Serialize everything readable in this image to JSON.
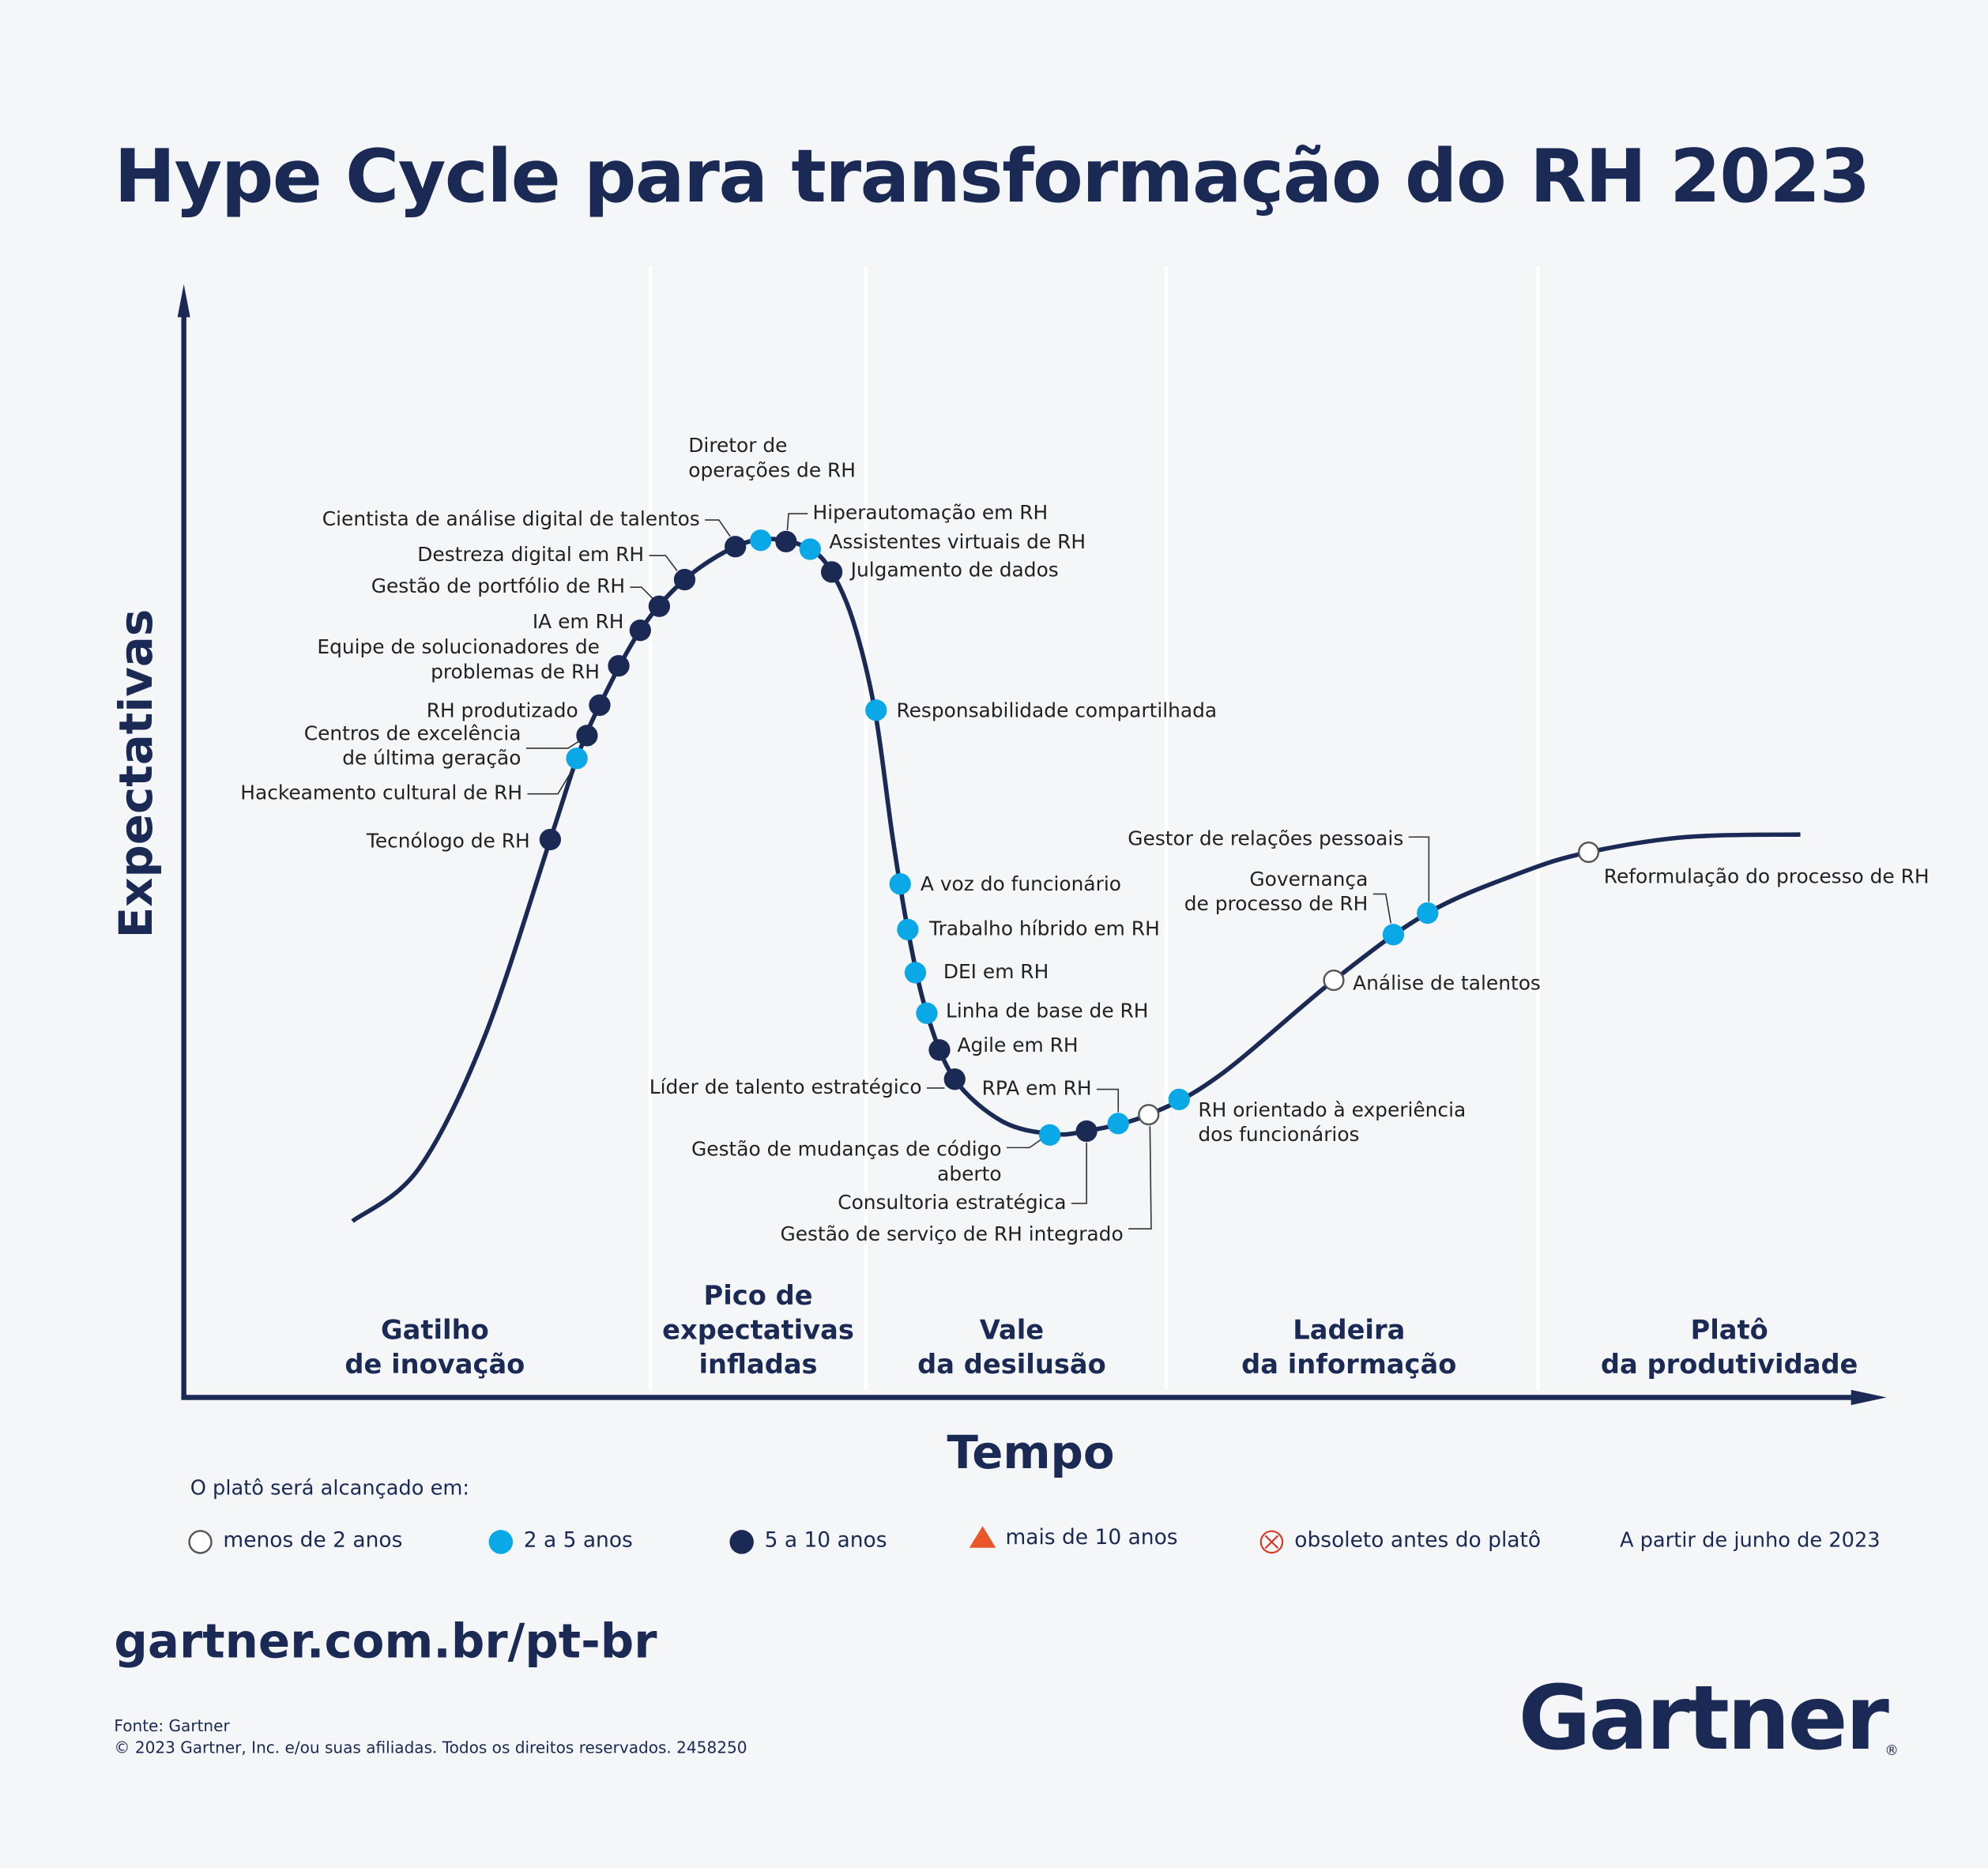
{
  "title": "Hype Cycle para transformação do RH 2023",
  "axes": {
    "y": "Expectativas",
    "x": "Tempo"
  },
  "phases": [
    {
      "lines": [
        "Gatilho",
        "de inovação"
      ]
    },
    {
      "lines": [
        "Pico de",
        "expectativas",
        "infladas"
      ]
    },
    {
      "lines": [
        "Vale",
        "da desilusão"
      ]
    },
    {
      "lines": [
        "Ladeira",
        "da informação"
      ]
    },
    {
      "lines": [
        "Platô",
        "da produtividade"
      ]
    }
  ],
  "technologies": [
    {
      "lines": [
        "Tecnólogo de RH"
      ],
      "horizon": "5 a 10 anos"
    },
    {
      "lines": [
        "Hackeamento cultural de RH"
      ],
      "horizon": "2 a 5 anos"
    },
    {
      "lines": [
        "Centros de excelência",
        "de última geração"
      ],
      "horizon": "5 a 10 anos"
    },
    {
      "lines": [
        "RH produtizado"
      ],
      "horizon": "5 a 10 anos"
    },
    {
      "lines": [
        "Equipe de solucionadores de",
        "problemas de RH"
      ],
      "horizon": "5 a 10 anos"
    },
    {
      "lines": [
        "IA em RH"
      ],
      "horizon": "5 a 10 anos"
    },
    {
      "lines": [
        "Gestão de portfólio de RH"
      ],
      "horizon": "5 a 10 anos"
    },
    {
      "lines": [
        "Destreza digital em RH"
      ],
      "horizon": "5 a 10 anos"
    },
    {
      "lines": [
        "Cientista de análise digital de talentos"
      ],
      "horizon": "5 a 10 anos"
    },
    {
      "lines": [
        "Diretor de",
        "operações de RH"
      ],
      "horizon": "2 a 5 anos"
    },
    {
      "lines": [
        "Hiperautomação em RH"
      ],
      "horizon": "5 a 10 anos"
    },
    {
      "lines": [
        "Assistentes virtuais de RH"
      ],
      "horizon": "2 a 5 anos"
    },
    {
      "lines": [
        "Julgamento de dados"
      ],
      "horizon": "5 a 10 anos"
    },
    {
      "lines": [
        "Responsabilidade compartilhada"
      ],
      "horizon": "2 a 5 anos"
    },
    {
      "lines": [
        "A voz do funcionário"
      ],
      "horizon": "2 a 5 anos"
    },
    {
      "lines": [
        "Trabalho híbrido em RH"
      ],
      "horizon": "2 a 5 anos"
    },
    {
      "lines": [
        "DEI em RH"
      ],
      "horizon": "2 a 5 anos"
    },
    {
      "lines": [
        "Linha de base de RH"
      ],
      "horizon": "2 a 5 anos"
    },
    {
      "lines": [
        "Agile em RH"
      ],
      "horizon": "5 a 10 anos"
    },
    {
      "lines": [
        "Líder de talento estratégico"
      ],
      "horizon": "5 a 10 anos"
    },
    {
      "lines": [
        "Gestão de mudanças de código",
        "aberto"
      ],
      "horizon": "2 a 5 anos"
    },
    {
      "lines": [
        "Consultoria estratégica"
      ],
      "horizon": "5 a 10 anos"
    },
    {
      "lines": [
        "RPA em RH"
      ],
      "horizon": "2 a 5 anos"
    },
    {
      "lines": [
        "Gestão de serviço de RH integrado"
      ],
      "horizon": "menos de 2 anos"
    },
    {
      "lines": [
        "RH orientado à experiência",
        "dos funcionários"
      ],
      "horizon": "2 a 5 anos"
    },
    {
      "lines": [
        "Análise de talentos"
      ],
      "horizon": "menos de 2 anos"
    },
    {
      "lines": [
        "Governança",
        "de processo de RH"
      ],
      "horizon": "2 a 5 anos"
    },
    {
      "lines": [
        "Gestor de relações pessoais"
      ],
      "horizon": "2 a 5 anos"
    },
    {
      "lines": [
        "Reformulação do processo de RH"
      ],
      "horizon": "menos de 2 anos"
    }
  ],
  "legend": {
    "title": "O platô será alcançado em:",
    "items": [
      "menos de 2 anos",
      "2 a 5 anos",
      "5 a 10 anos",
      "mais de 10 anos",
      "obsoleto antes do platô"
    ]
  },
  "as_of": "A partir de junho de 2023",
  "url": "gartner.com.br/pt-br",
  "source": "Fonte: Gartner",
  "copyright": "© 2023 Gartner, Inc. e/ou suas afiliadas. Todos os direitos reservados. 2458250",
  "logo": "Gartner"
}
